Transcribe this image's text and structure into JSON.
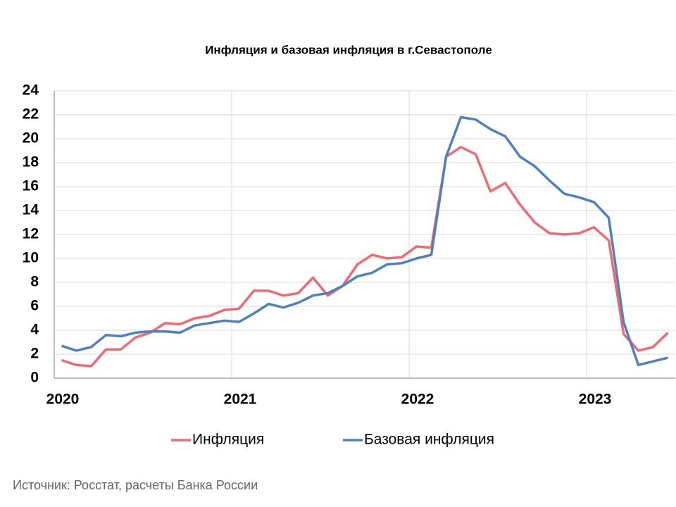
{
  "chart_data": {
    "type": "line",
    "title": "Инфляция и базовая инфляция в г.Севастополе",
    "source": "Источник: Росстат, расчеты Банка России",
    "x": [
      0.5,
      1.5,
      2.5,
      3.5,
      4.5,
      5.5,
      6.5,
      7.5,
      8.5,
      9.5,
      10.5,
      11.5,
      12.5,
      13.5,
      14.5,
      15.5,
      16.5,
      17.5,
      18.5,
      19.5,
      20.5,
      21.5,
      22.5,
      23.5,
      24.5,
      25.5,
      26.5,
      27.5,
      28.5,
      29.5,
      30.5,
      31.5,
      32.5,
      33.5,
      34.5,
      35.5,
      36.5,
      37.5,
      38.5,
      39.5,
      40.5,
      41.5
    ],
    "series": [
      {
        "name": "Инфляция",
        "color": "#ee6b71",
        "values": [
          1.5,
          1.1,
          1.0,
          2.4,
          2.4,
          3.4,
          3.8,
          4.6,
          4.5,
          5.0,
          5.2,
          5.7,
          5.8,
          7.3,
          7.3,
          6.9,
          7.1,
          8.4,
          6.9,
          7.7,
          9.5,
          10.3,
          10.0,
          10.1,
          11.0,
          10.9,
          18.5,
          19.3,
          18.7,
          15.6,
          16.3,
          14.5,
          13.0,
          12.1,
          12.0,
          12.1,
          12.6,
          11.5,
          3.7,
          2.3,
          2.6,
          3.8
        ]
      },
      {
        "name": "Базовая инфляция",
        "color": "#4f81bd",
        "values": [
          2.7,
          2.3,
          2.6,
          3.6,
          3.5,
          3.8,
          3.9,
          3.9,
          3.8,
          4.4,
          4.6,
          4.8,
          4.7,
          5.4,
          6.2,
          5.9,
          6.3,
          6.9,
          7.1,
          7.7,
          8.5,
          8.8,
          9.5,
          9.6,
          10.0,
          10.3,
          18.5,
          21.8,
          21.6,
          20.8,
          20.2,
          18.5,
          17.7,
          16.5,
          15.4,
          15.1,
          14.7,
          13.4,
          4.7,
          1.1,
          1.4,
          1.7
        ]
      }
    ],
    "xlim": [
      0,
      42
    ],
    "xticks": [
      {
        "value": 0,
        "label": "2020"
      },
      {
        "value": 12,
        "label": "2021"
      },
      {
        "value": 24,
        "label": "2022"
      },
      {
        "value": 36,
        "label": "2023"
      }
    ],
    "ylim": [
      0,
      24
    ],
    "yticks": [
      0,
      2,
      4,
      6,
      8,
      10,
      12,
      14,
      16,
      18,
      20,
      22,
      24
    ],
    "grid": true,
    "legend": "bottom"
  }
}
